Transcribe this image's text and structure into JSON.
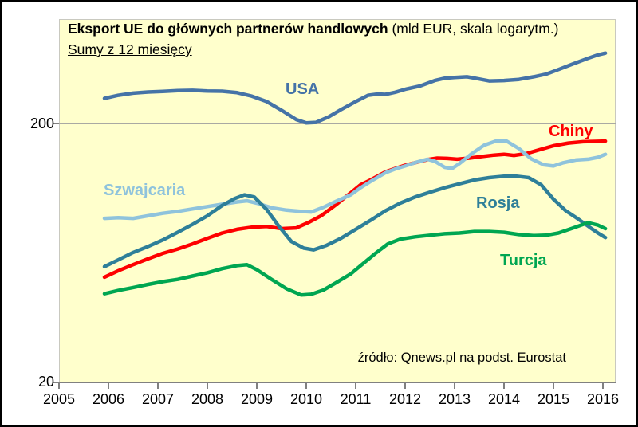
{
  "title": {
    "main": "Eksport UE do głównych partnerów handlowych",
    "unit_note": " (mld EUR, skala logarytm.)",
    "subtitle": "Sumy z 12 miesięcy"
  },
  "source_note": "źródło: Qnews.pl na podst. Eurostat",
  "colors": {
    "plot_background": "#FFFFCC",
    "figure_border": "#000000",
    "axis": "#808080",
    "gridline": "#A9A9A3",
    "usa": "#4573A7",
    "chiny": "#FE0000",
    "szwajcaria": "#8FC3DC",
    "rosja": "#2E7F99",
    "turcja": "#00A651"
  },
  "chart_data": {
    "type": "line",
    "title": "Eksport UE do głównych partnerów handlowych (mld EUR, skala logarytm.)",
    "subtitle": "Sumy z 12 miesięcy",
    "xlabel": "",
    "ylabel": "mld EUR",
    "y_scale": "log",
    "ylim": [
      20,
      500
    ],
    "y_ticks": [
      200,
      20
    ],
    "x_ticks": [
      2005,
      2006,
      2007,
      2008,
      2009,
      2010,
      2011,
      2012,
      2013,
      2014,
      2015,
      2016
    ],
    "grid": "horizontal-at-200-only",
    "legend": "inline-colored-labels",
    "series": [
      {
        "id": "usa",
        "name": "USA",
        "color": "#4573A7",
        "points": [
          [
            2005.92,
            250
          ],
          [
            2006.2,
            257
          ],
          [
            2006.5,
            262
          ],
          [
            2006.8,
            264.5
          ],
          [
            2007.1,
            266
          ],
          [
            2007.4,
            268
          ],
          [
            2007.7,
            268.5
          ],
          [
            2008.0,
            267
          ],
          [
            2008.3,
            266.5
          ],
          [
            2008.6,
            263
          ],
          [
            2008.9,
            255
          ],
          [
            2009.2,
            243
          ],
          [
            2009.5,
            225
          ],
          [
            2009.8,
            207
          ],
          [
            2010.0,
            201
          ],
          [
            2010.2,
            202
          ],
          [
            2010.45,
            212
          ],
          [
            2010.7,
            226
          ],
          [
            2011.0,
            243
          ],
          [
            2011.25,
            257
          ],
          [
            2011.45,
            260
          ],
          [
            2011.6,
            259
          ],
          [
            2011.8,
            264
          ],
          [
            2012.0,
            271
          ],
          [
            2012.3,
            279
          ],
          [
            2012.6,
            293
          ],
          [
            2012.8,
            299
          ],
          [
            2013.0,
            301
          ],
          [
            2013.25,
            303
          ],
          [
            2013.5,
            297
          ],
          [
            2013.7,
            292
          ],
          [
            2014.0,
            293
          ],
          [
            2014.3,
            296
          ],
          [
            2014.6,
            303
          ],
          [
            2014.85,
            310
          ],
          [
            2015.1,
            323
          ],
          [
            2015.4,
            340
          ],
          [
            2015.7,
            357
          ],
          [
            2015.9,
            368
          ],
          [
            2016.05,
            374
          ]
        ]
      },
      {
        "id": "chiny",
        "name": "Chiny",
        "color": "#FE0000",
        "points": [
          [
            2005.92,
            51
          ],
          [
            2006.2,
            54
          ],
          [
            2006.5,
            57
          ],
          [
            2006.8,
            60
          ],
          [
            2007.1,
            63
          ],
          [
            2007.4,
            65.5
          ],
          [
            2007.7,
            68.5
          ],
          [
            2008.0,
            72
          ],
          [
            2008.3,
            75.5
          ],
          [
            2008.6,
            78
          ],
          [
            2008.9,
            79.5
          ],
          [
            2009.2,
            80
          ],
          [
            2009.5,
            78.5
          ],
          [
            2009.8,
            79
          ],
          [
            2010.05,
            83
          ],
          [
            2010.3,
            88
          ],
          [
            2010.6,
            97
          ],
          [
            2010.9,
            108
          ],
          [
            2011.1,
            116
          ],
          [
            2011.3,
            121
          ],
          [
            2011.6,
            130
          ],
          [
            2011.8,
            134
          ],
          [
            2012.0,
            138
          ],
          [
            2012.2,
            141
          ],
          [
            2012.45,
            145
          ],
          [
            2012.65,
            147
          ],
          [
            2012.85,
            146.5
          ],
          [
            2013.05,
            145.5
          ],
          [
            2013.3,
            147
          ],
          [
            2013.55,
            149
          ],
          [
            2013.8,
            151
          ],
          [
            2014.0,
            152
          ],
          [
            2014.2,
            150.5
          ],
          [
            2014.45,
            153
          ],
          [
            2014.7,
            158
          ],
          [
            2015.0,
            164
          ],
          [
            2015.3,
            168
          ],
          [
            2015.6,
            170
          ],
          [
            2015.85,
            170.5
          ],
          [
            2016.05,
            171
          ]
        ]
      },
      {
        "id": "szwajcaria",
        "name": "Szwajcaria",
        "color": "#8FC3DC",
        "points": [
          [
            2005.92,
            86
          ],
          [
            2006.2,
            86.5
          ],
          [
            2006.5,
            86
          ],
          [
            2006.8,
            88
          ],
          [
            2007.1,
            90
          ],
          [
            2007.4,
            91.5
          ],
          [
            2007.7,
            93.5
          ],
          [
            2008.0,
            95.5
          ],
          [
            2008.3,
            97.5
          ],
          [
            2008.6,
            99.5
          ],
          [
            2008.8,
            100.5
          ],
          [
            2009.0,
            98.5
          ],
          [
            2009.3,
            94.5
          ],
          [
            2009.6,
            92.5
          ],
          [
            2009.9,
            91.5
          ],
          [
            2010.1,
            91
          ],
          [
            2010.35,
            95
          ],
          [
            2010.6,
            100
          ],
          [
            2010.9,
            106
          ],
          [
            2011.1,
            113
          ],
          [
            2011.35,
            121
          ],
          [
            2011.6,
            129
          ],
          [
            2011.8,
            133.5
          ],
          [
            2012.0,
            137
          ],
          [
            2012.25,
            142
          ],
          [
            2012.45,
            145.5
          ],
          [
            2012.6,
            143
          ],
          [
            2012.8,
            135.5
          ],
          [
            2012.95,
            134
          ],
          [
            2013.1,
            140
          ],
          [
            2013.35,
            153
          ],
          [
            2013.6,
            165
          ],
          [
            2013.85,
            171.5
          ],
          [
            2014.05,
            171
          ],
          [
            2014.3,
            160
          ],
          [
            2014.55,
            146
          ],
          [
            2014.8,
            138.5
          ],
          [
            2015.0,
            137
          ],
          [
            2015.2,
            141
          ],
          [
            2015.45,
            144.5
          ],
          [
            2015.7,
            145.5
          ],
          [
            2015.9,
            148
          ],
          [
            2016.05,
            152
          ]
        ]
      },
      {
        "id": "rosja",
        "name": "Rosja",
        "color": "#2E7F99",
        "points": [
          [
            2005.92,
            56
          ],
          [
            2006.2,
            59.5
          ],
          [
            2006.5,
            63.5
          ],
          [
            2006.8,
            67
          ],
          [
            2007.1,
            71
          ],
          [
            2007.4,
            76
          ],
          [
            2007.7,
            81.5
          ],
          [
            2008.0,
            88
          ],
          [
            2008.3,
            96.5
          ],
          [
            2008.55,
            102.5
          ],
          [
            2008.75,
            106
          ],
          [
            2008.95,
            104
          ],
          [
            2009.2,
            93
          ],
          [
            2009.45,
            80
          ],
          [
            2009.7,
            70
          ],
          [
            2009.95,
            66
          ],
          [
            2010.15,
            65
          ],
          [
            2010.4,
            67.5
          ],
          [
            2010.7,
            72
          ],
          [
            2011.0,
            78
          ],
          [
            2011.3,
            84.5
          ],
          [
            2011.6,
            92
          ],
          [
            2011.9,
            98.5
          ],
          [
            2012.2,
            104
          ],
          [
            2012.5,
            108.5
          ],
          [
            2012.8,
            113
          ],
          [
            2013.1,
            117
          ],
          [
            2013.4,
            121
          ],
          [
            2013.7,
            123.5
          ],
          [
            2014.0,
            125
          ],
          [
            2014.2,
            125.5
          ],
          [
            2014.5,
            123.5
          ],
          [
            2014.75,
            116
          ],
          [
            2015.0,
            102
          ],
          [
            2015.25,
            92
          ],
          [
            2015.5,
            85.5
          ],
          [
            2015.75,
            79
          ],
          [
            2015.9,
            75.5
          ],
          [
            2016.05,
            72.5
          ]
        ]
      },
      {
        "id": "turcja",
        "name": "Turcja",
        "color": "#00A651",
        "points": [
          [
            2005.92,
            44
          ],
          [
            2006.2,
            45.3
          ],
          [
            2006.5,
            46.5
          ],
          [
            2006.8,
            47.8
          ],
          [
            2007.1,
            49
          ],
          [
            2007.4,
            50
          ],
          [
            2007.7,
            51.5
          ],
          [
            2008.0,
            53
          ],
          [
            2008.3,
            55
          ],
          [
            2008.6,
            56.5
          ],
          [
            2008.8,
            57
          ],
          [
            2009.0,
            54.5
          ],
          [
            2009.3,
            50
          ],
          [
            2009.6,
            46
          ],
          [
            2009.9,
            43.5
          ],
          [
            2010.1,
            43.8
          ],
          [
            2010.35,
            45.5
          ],
          [
            2010.6,
            48.5
          ],
          [
            2010.9,
            52.5
          ],
          [
            2011.15,
            57.5
          ],
          [
            2011.4,
            63
          ],
          [
            2011.65,
            68.5
          ],
          [
            2011.9,
            71.5
          ],
          [
            2012.2,
            73
          ],
          [
            2012.5,
            74
          ],
          [
            2012.8,
            75
          ],
          [
            2013.1,
            75.5
          ],
          [
            2013.4,
            76.5
          ],
          [
            2013.7,
            76.5
          ],
          [
            2014.0,
            76
          ],
          [
            2014.3,
            74.5
          ],
          [
            2014.6,
            73.8
          ],
          [
            2014.85,
            74
          ],
          [
            2015.1,
            75.5
          ],
          [
            2015.4,
            79
          ],
          [
            2015.7,
            82.8
          ],
          [
            2015.9,
            81
          ],
          [
            2016.05,
            78.5
          ]
        ]
      }
    ]
  }
}
